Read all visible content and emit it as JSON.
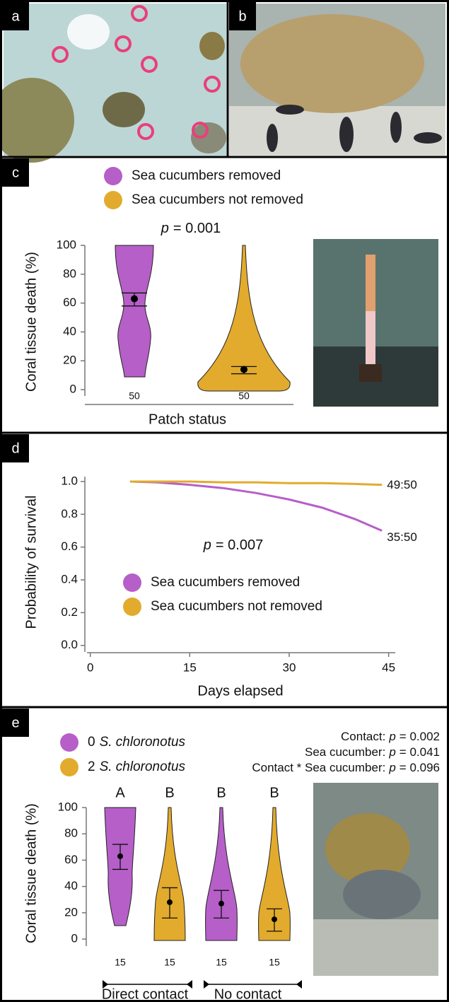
{
  "photo_panels": [
    "a",
    "b"
  ],
  "chart_data": [
    {
      "type": "violin",
      "panel": "c",
      "annotation": {
        "italic": "p",
        "text": "= 0.001"
      },
      "y_label": "Coral tissue death (%)",
      "x_label": "Patch status",
      "categories": [
        null
      ],
      "series": [
        {
          "name": "Sea cucumbers removed",
          "color": "#b65fc8",
          "values": [
            63
          ],
          "ci_low": [
            58
          ],
          "ci_high": [
            67
          ],
          "n": [
            50
          ]
        },
        {
          "name": "Sea cucumbers not removed",
          "color": "#e2ab2d",
          "values": [
            14
          ],
          "ci_low": [
            11
          ],
          "ci_high": [
            16
          ],
          "n": [
            50
          ]
        }
      ],
      "ylim": [
        0,
        100
      ],
      "yticks": [
        0,
        20,
        40,
        60,
        80,
        100
      ]
    },
    {
      "type": "line",
      "panel": "d",
      "annotation": {
        "italic": "p",
        "text": "= 0.007"
      },
      "y_label": "Probability of survival",
      "x_label": "Days elapsed",
      "x": [
        6,
        10,
        15,
        20,
        25,
        30,
        35,
        40,
        44
      ],
      "series": [
        {
          "name": "Sea cucumbers removed",
          "color": "#b65fc8",
          "values": [
            1.0,
            0.995,
            0.98,
            0.96,
            0.93,
            0.89,
            0.84,
            0.77,
            0.7
          ],
          "end_label": "35:50"
        },
        {
          "name": "Sea cucumbers not removed",
          "color": "#e2ab2d",
          "values": [
            1.0,
            1.0,
            1.0,
            0.995,
            0.995,
            0.99,
            0.99,
            0.985,
            0.98
          ],
          "end_label": "49:50"
        }
      ],
      "xlim": [
        -0.5,
        46
      ],
      "xticks": [
        0,
        15,
        30,
        45
      ],
      "ylim": [
        -0.04,
        1.03
      ],
      "yticks": [
        {
          "value": 0,
          "label": "0.0"
        },
        {
          "value": 0.2,
          "label": "0.2"
        },
        {
          "value": 0.4,
          "label": "0.4"
        },
        {
          "value": 0.6,
          "label": "0.6"
        },
        {
          "value": 0.8,
          "label": "0.8"
        },
        {
          "value": 1,
          "label": "1.0"
        }
      ]
    },
    {
      "type": "violin",
      "panel": "e",
      "y_label": "Coral tissue death (%)",
      "categories": [
        "Direct contact",
        "No contact"
      ],
      "stats": [
        {
          "label": "Contact:",
          "italic": "p",
          "text": "= 0.002"
        },
        {
          "label": "Sea cucumber:",
          "italic": "p",
          "text": "= 0.041"
        },
        {
          "label": "Contact * Sea cucumber:",
          "italic": "p",
          "text": "= 0.096"
        }
      ],
      "series": [
        {
          "name": "0",
          "name_italic": "S. chloronotus",
          "color": "#b65fc8",
          "values": [
            63,
            27
          ],
          "ci_low": [
            53,
            16
          ],
          "ci_high": [
            72,
            37
          ],
          "n": [
            15,
            15
          ],
          "letters": [
            "A",
            "B"
          ]
        },
        {
          "name": "2",
          "name_italic": "S. chloronotus",
          "color": "#e2ab2d",
          "values": [
            28,
            15
          ],
          "ci_low": [
            16,
            6
          ],
          "ci_high": [
            39,
            23
          ],
          "n": [
            15,
            15
          ],
          "letters": [
            "B",
            "B"
          ]
        }
      ],
      "ylim": [
        0,
        100
      ],
      "yticks": [
        0,
        20,
        40,
        60,
        80,
        100
      ]
    }
  ]
}
